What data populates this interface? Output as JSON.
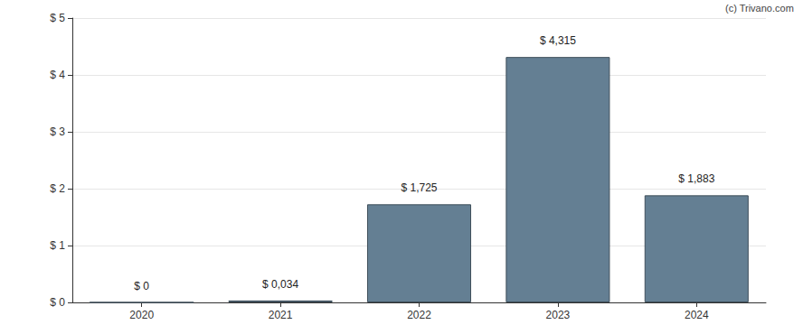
{
  "chart_data": {
    "type": "bar",
    "annotations": [
      "(c) Trivano.com"
    ],
    "categories": [
      "2020",
      "2021",
      "2022",
      "2023",
      "2024"
    ],
    "values": [
      0,
      0.034,
      1.725,
      4.315,
      1.883
    ],
    "value_labels": [
      "$ 0",
      "$ 0,034",
      "$ 1,725",
      "$ 4,315",
      "$ 1,883"
    ],
    "color": "#647f93",
    "ylim": [
      0,
      5
    ],
    "yticks": [
      {
        "value": 0,
        "label": "$ 0"
      },
      {
        "value": 1,
        "label": "$ 1"
      },
      {
        "value": 2,
        "label": "$ 2"
      },
      {
        "value": 3,
        "label": "$ 3"
      },
      {
        "value": 4,
        "label": "$ 4"
      },
      {
        "value": 5,
        "label": "$ 5"
      }
    ],
    "grid": true,
    "data_labels": true
  }
}
